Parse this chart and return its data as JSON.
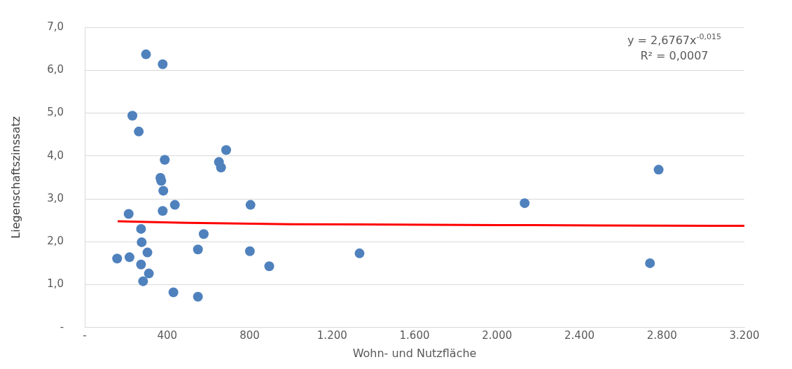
{
  "chart_data": {
    "type": "scatter",
    "xlabel": "Wohn- und Nutzfläche",
    "ylabel": "Liegenschaftszinssatz",
    "xlim": [
      0,
      3200
    ],
    "xticks": [
      {
        "value": 0,
        "label": "-"
      },
      400,
      800,
      {
        "value": 1200,
        "label": "1.200"
      },
      {
        "value": 1600,
        "label": "1.600"
      },
      {
        "value": 2000,
        "label": "2.000"
      },
      {
        "value": 2400,
        "label": "2.400"
      },
      {
        "value": 2800,
        "label": "2.800"
      },
      {
        "value": 3200,
        "label": "3.200"
      }
    ],
    "ylim": [
      0,
      7
    ],
    "yticks": [
      {
        "value": 0,
        "label": "-"
      },
      {
        "value": 1,
        "label": "1,0"
      },
      {
        "value": 2,
        "label": "2,0"
      },
      {
        "value": 3,
        "label": "3,0"
      },
      {
        "value": 4,
        "label": "4,0"
      },
      {
        "value": 5,
        "label": "5,0"
      },
      {
        "value": 6,
        "label": "6,0"
      },
      {
        "value": 7,
        "label": "7,0"
      }
    ],
    "grid": "y",
    "legend": false,
    "marker": "circle",
    "series": [
      {
        "color": "#4f81bd",
        "x": [
          297,
          378,
          231,
          262,
          388,
          686,
          651,
          661,
          367,
          371,
          381,
          437,
          804,
          378,
          213,
          273,
          276,
          577,
          304,
          549,
          801,
          157,
          217,
          273,
          311,
          283,
          895,
          430,
          549,
          1333,
          2134,
          2784,
          2742
        ],
        "values": [
          6.37,
          6.14,
          4.94,
          4.57,
          3.91,
          4.14,
          3.86,
          3.73,
          3.49,
          3.42,
          3.19,
          2.86,
          2.86,
          2.72,
          2.65,
          2.3,
          1.99,
          2.18,
          1.75,
          1.82,
          1.78,
          1.61,
          1.64,
          1.47,
          1.26,
          1.08,
          1.43,
          0.82,
          0.72,
          1.73,
          2.9,
          3.68,
          1.5
        ]
      },
      {
        "type": "line",
        "color": "#ff0000",
        "line_style": "solid",
        "marker": "none",
        "x": [
          160,
          300,
          500,
          1000,
          1500,
          2000,
          2500,
          3200
        ],
        "values": [
          2.48,
          2.46,
          2.44,
          2.41,
          2.4,
          2.39,
          2.38,
          2.37
        ]
      }
    ],
    "annotations": [
      "y = 2,6767x$^{-0,015}$",
      "R² = 0,0007"
    ]
  }
}
